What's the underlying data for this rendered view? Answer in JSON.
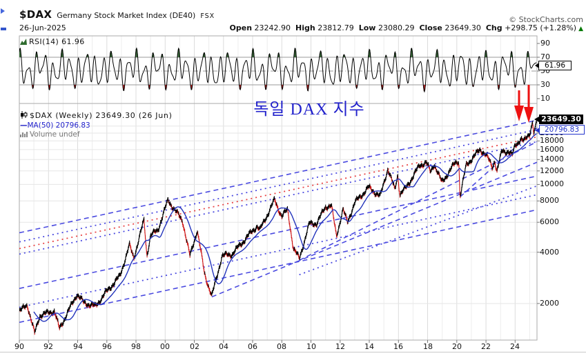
{
  "header": {
    "symbol": "$DAX",
    "description": "Germany Stock Market Index (DE40)",
    "exchange": "FSX",
    "date": "26-Jun-2025",
    "copyright": "© StockCharts.com",
    "quote": [
      {
        "label": "Open",
        "value": "23242.90"
      },
      {
        "label": "High",
        "value": "23812.79"
      },
      {
        "label": "Low",
        "value": "23080.29"
      },
      {
        "label": "Close",
        "value": "23649.30"
      },
      {
        "label": "Chg",
        "value": "+298.75 (+1.28%)"
      }
    ],
    "change_direction": "up"
  },
  "rsi_panel": {
    "legend": "RSI(14) 61.96",
    "badge": "61.96",
    "axis_labels": [
      90,
      70,
      50,
      30,
      10
    ],
    "overbought": 70,
    "midline": 50,
    "oversold": 30,
    "last_value": 61.96
  },
  "main_panel": {
    "legend_symbol": "$DAX (Weekly) 23649.30 (26 Jun)",
    "legend_ma": "MA(50) 20796.83",
    "legend_volume": "Volume undef",
    "annotation": "독일 DAX 지수",
    "price_badge": "23649.30",
    "ma_badge": "20796.83",
    "y_axis": [
      20000,
      18000,
      16000,
      14000,
      12000,
      10000,
      8000,
      6000,
      4000,
      2000
    ],
    "x_axis": [
      "90",
      "92",
      "94",
      "96",
      "98",
      "00",
      "02",
      "04",
      "06",
      "08",
      "10",
      "12",
      "14",
      "16",
      "18",
      "20",
      "22",
      "24"
    ]
  },
  "chart_data": [
    {
      "type": "line",
      "title": "RSI(14)",
      "x_range": [
        1990,
        2025.5
      ],
      "ylim": [
        0,
        100
      ],
      "gridlines": [
        70,
        50,
        30
      ],
      "last_value": 61.96,
      "note": "weekly RSI oscillating mostly 30-80, shaded green above 70, red below 30"
    },
    {
      "type": "candlestick",
      "title": "$DAX Weekly (log scale)",
      "x_range": [
        1990,
        2025.5
      ],
      "ylog": true,
      "ylim": [
        1250,
        29000
      ],
      "last_close": 23649.3,
      "week_high": 23812.79,
      "ma50_last": 20796.83,
      "price_keypoints": [
        [
          1990.0,
          1790
        ],
        [
          1990.55,
          1968
        ],
        [
          1991.05,
          1335
        ],
        [
          1991.4,
          1700
        ],
        [
          1992.4,
          1810
        ],
        [
          1992.75,
          1420
        ],
        [
          1993.95,
          2270
        ],
        [
          1994.4,
          2030
        ],
        [
          1995.2,
          1920
        ],
        [
          1995.9,
          2300
        ],
        [
          1996.9,
          2900
        ],
        [
          1997.55,
          4400
        ],
        [
          1997.85,
          3700
        ],
        [
          1998.55,
          6170
        ],
        [
          1998.75,
          3830
        ],
        [
          1999.0,
          5000
        ],
        [
          1999.5,
          5400
        ],
        [
          2000.2,
          8100
        ],
        [
          2000.7,
          7000
        ],
        [
          2001.2,
          6100
        ],
        [
          2001.7,
          3787
        ],
        [
          2002.2,
          5400
        ],
        [
          2002.7,
          3000
        ],
        [
          2003.2,
          2203
        ],
        [
          2003.9,
          3800
        ],
        [
          2004.6,
          3900
        ],
        [
          2005.7,
          5000
        ],
        [
          2006.3,
          5700
        ],
        [
          2006.5,
          5400
        ],
        [
          2007.5,
          8100
        ],
        [
          2008.0,
          6500
        ],
        [
          2008.4,
          7100
        ],
        [
          2008.8,
          4200
        ],
        [
          2009.2,
          3666
        ],
        [
          2009.9,
          5900
        ],
        [
          2010.4,
          5900
        ],
        [
          2011.0,
          7400
        ],
        [
          2011.4,
          7500
        ],
        [
          2011.75,
          5000
        ],
        [
          2012.2,
          7100
        ],
        [
          2012.5,
          6000
        ],
        [
          2013.0,
          7800
        ],
        [
          2013.95,
          9600
        ],
        [
          2014.75,
          8500
        ],
        [
          2015.27,
          12374
        ],
        [
          2015.75,
          9300
        ],
        [
          2015.95,
          11400
        ],
        [
          2016.1,
          8750
        ],
        [
          2016.5,
          9500
        ],
        [
          2017.45,
          12900
        ],
        [
          2017.9,
          13500
        ],
        [
          2018.2,
          11800
        ],
        [
          2018.45,
          13200
        ],
        [
          2018.97,
          10280
        ],
        [
          2019.9,
          13400
        ],
        [
          2020.14,
          13750
        ],
        [
          2020.22,
          8442
        ],
        [
          2020.65,
          13000
        ],
        [
          2021.6,
          16000
        ],
        [
          2021.95,
          15100
        ],
        [
          2022.1,
          14400
        ],
        [
          2022.45,
          12600
        ],
        [
          2022.6,
          13900
        ],
        [
          2022.75,
          11900
        ],
        [
          2023.1,
          15700
        ],
        [
          2023.55,
          15600
        ],
        [
          2023.8,
          14700
        ],
        [
          2024.0,
          17000
        ],
        [
          2024.4,
          18500
        ],
        [
          2024.6,
          17800
        ],
        [
          2025.0,
          20000
        ],
        [
          2025.2,
          23400
        ],
        [
          2025.28,
          19700
        ],
        [
          2025.48,
          23812
        ]
      ],
      "trendlines": [
        {
          "x1": 1990,
          "p1": 5200,
          "x2": 2025.5,
          "p2": 23800,
          "color": "blue",
          "style": "dashed"
        },
        {
          "x1": 1990,
          "p1": 2450,
          "x2": 2025.5,
          "p2": 11200,
          "color": "blue",
          "style": "dashed"
        },
        {
          "x1": 1990,
          "p1": 1550,
          "x2": 2025.5,
          "p2": 7100,
          "color": "blue",
          "style": "dashed"
        },
        {
          "x1": 2003.2,
          "p1": 2188,
          "x2": 2025.5,
          "p2": 13500,
          "color": "blue",
          "style": "dashed"
        },
        {
          "x1": 2009.2,
          "p1": 3588,
          "x2": 2025.5,
          "p2": 17800,
          "color": "blue",
          "style": "dashed"
        },
        {
          "x1": 2020.22,
          "p1": 8442,
          "x2": 2025.5,
          "p2": 21500,
          "color": "blue",
          "style": "dashed"
        },
        {
          "x1": 1990,
          "p1": 4600,
          "x2": 2025.5,
          "p2": 21000,
          "color": "blue",
          "style": "dotted"
        },
        {
          "x1": 1990,
          "p1": 3900,
          "x2": 2025.5,
          "p2": 17800,
          "color": "blue",
          "style": "dotted"
        },
        {
          "x1": 1990,
          "p1": 1900,
          "x2": 2025.5,
          "p2": 8700,
          "color": "blue",
          "style": "dotted"
        },
        {
          "x1": 2009.2,
          "p1": 2950,
          "x2": 2025.5,
          "p2": 9800,
          "color": "blue",
          "style": "dotted"
        },
        {
          "x1": 1990,
          "p1": 4200,
          "x2": 2025.5,
          "p2": 19000,
          "color": "red",
          "style": "dotted"
        }
      ],
      "annotations": [
        "two red down-arrows pointing at the June 2025 high"
      ]
    }
  ],
  "colors": {
    "candle_up": "#000000",
    "candle_down": "#cc1111",
    "ma_line": "#2233bb",
    "trend_blue": "#4a4ae0",
    "trend_red": "#e84444",
    "annotation_text": "#2222cc",
    "arrow": "#ee1111",
    "chg_up": "#007700",
    "rsi_line": "#000000",
    "rsi_fill_high": "#3a6b3a",
    "rsi_fill_low": "#bb2222",
    "grid": "#e6e6e6",
    "panel_border": "#aaaaaa",
    "badge_price_bg": "#000000",
    "badge_ma_border": "#2233cc"
  }
}
